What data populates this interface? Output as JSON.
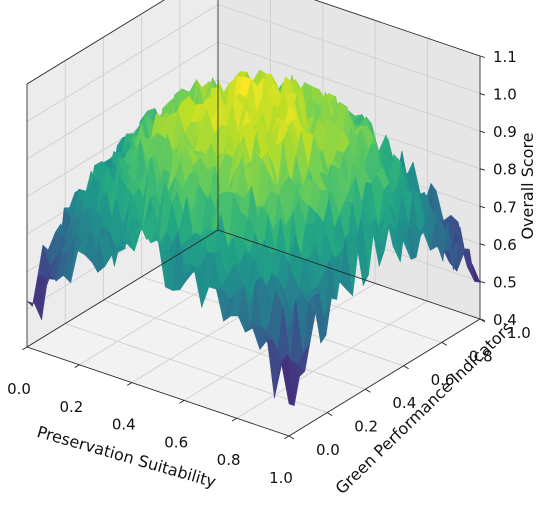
{
  "chart_data": {
    "type": "surface",
    "title": "",
    "xlabel": "Preservation Suitability",
    "ylabel": "Green Performance Indicators",
    "zlabel": "Overall Score",
    "xlim": [
      0.0,
      1.0
    ],
    "ylim": [
      0.0,
      1.0
    ],
    "zlim": [
      0.4,
      1.1
    ],
    "x_ticks": [
      "0.0",
      "0.2",
      "0.4",
      "0.6",
      "0.8",
      "1.0"
    ],
    "y_ticks": [
      "0.0",
      "0.2",
      "0.4",
      "0.6",
      "0.8",
      "1.0"
    ],
    "z_ticks": [
      "0.4",
      "0.5",
      "0.6",
      "0.7",
      "0.8",
      "0.9",
      "1.0",
      "1.1"
    ],
    "colormap": "viridis",
    "grid": true,
    "surface_model": {
      "description": "noisy dome peaking at center",
      "center": [
        0.5,
        0.5
      ],
      "peak_value": 1.0,
      "corner_value": 0.5,
      "noise_amplitude": 0.05
    }
  }
}
